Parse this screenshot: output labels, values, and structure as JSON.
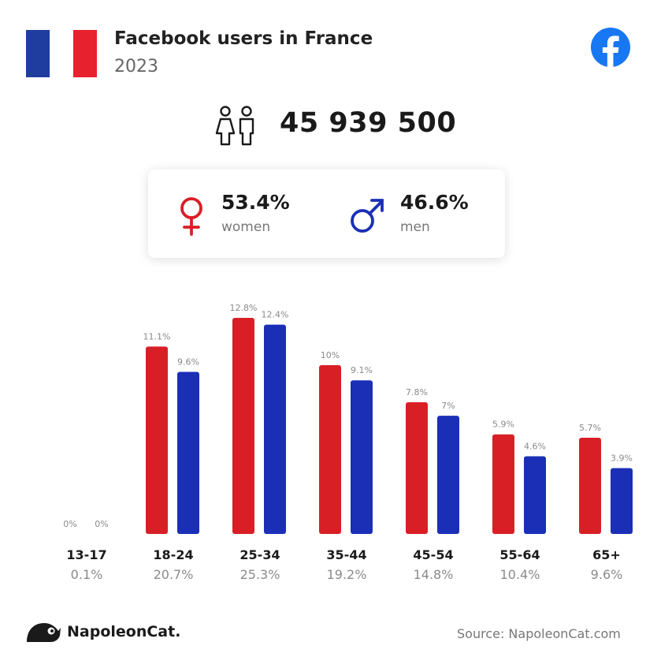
{
  "header": {
    "title": "Facebook users in France",
    "year": "2023",
    "flag_colors": [
      "#1f3d9e",
      "#ffffff",
      "#e8212e"
    ]
  },
  "total": {
    "value": "45 939 500",
    "icon": "people-icon"
  },
  "gender": {
    "women": {
      "pct": "53.4%",
      "label": "women",
      "icon": "female-icon",
      "color": "#d91f26"
    },
    "men": {
      "pct": "46.6%",
      "label": "men",
      "icon": "male-icon",
      "color": "#1a2fb6"
    }
  },
  "colors": {
    "women": "#d91f26",
    "men": "#1a2fb6",
    "facebook": "#1877f2"
  },
  "chart_data": {
    "type": "bar",
    "categories": [
      "13-17",
      "18-24",
      "25-34",
      "35-44",
      "45-54",
      "55-64",
      "65+"
    ],
    "category_totals": [
      "0.1%",
      "20.7%",
      "25.3%",
      "19.2%",
      "14.8%",
      "10.4%",
      "9.6%"
    ],
    "series": [
      {
        "name": "women",
        "values": [
          0,
          11.1,
          12.8,
          10,
          7.8,
          5.9,
          5.7
        ],
        "labels": [
          "0%",
          "11.1%",
          "12.8%",
          "10%",
          "7.8%",
          "5.9%",
          "5.7%"
        ]
      },
      {
        "name": "men",
        "values": [
          0,
          9.6,
          12.4,
          9.1,
          7,
          4.6,
          3.9
        ],
        "labels": [
          "0%",
          "9.6%",
          "12.4%",
          "9.1%",
          "7%",
          "4.6%",
          "3.9%"
        ]
      }
    ],
    "ylim": [
      0,
      12.8
    ]
  },
  "footer": {
    "brand": "NapoleonCat.",
    "source": "Source: NapoleonCat.com",
    "logo_icon": "napoleoncat-logo-icon"
  }
}
